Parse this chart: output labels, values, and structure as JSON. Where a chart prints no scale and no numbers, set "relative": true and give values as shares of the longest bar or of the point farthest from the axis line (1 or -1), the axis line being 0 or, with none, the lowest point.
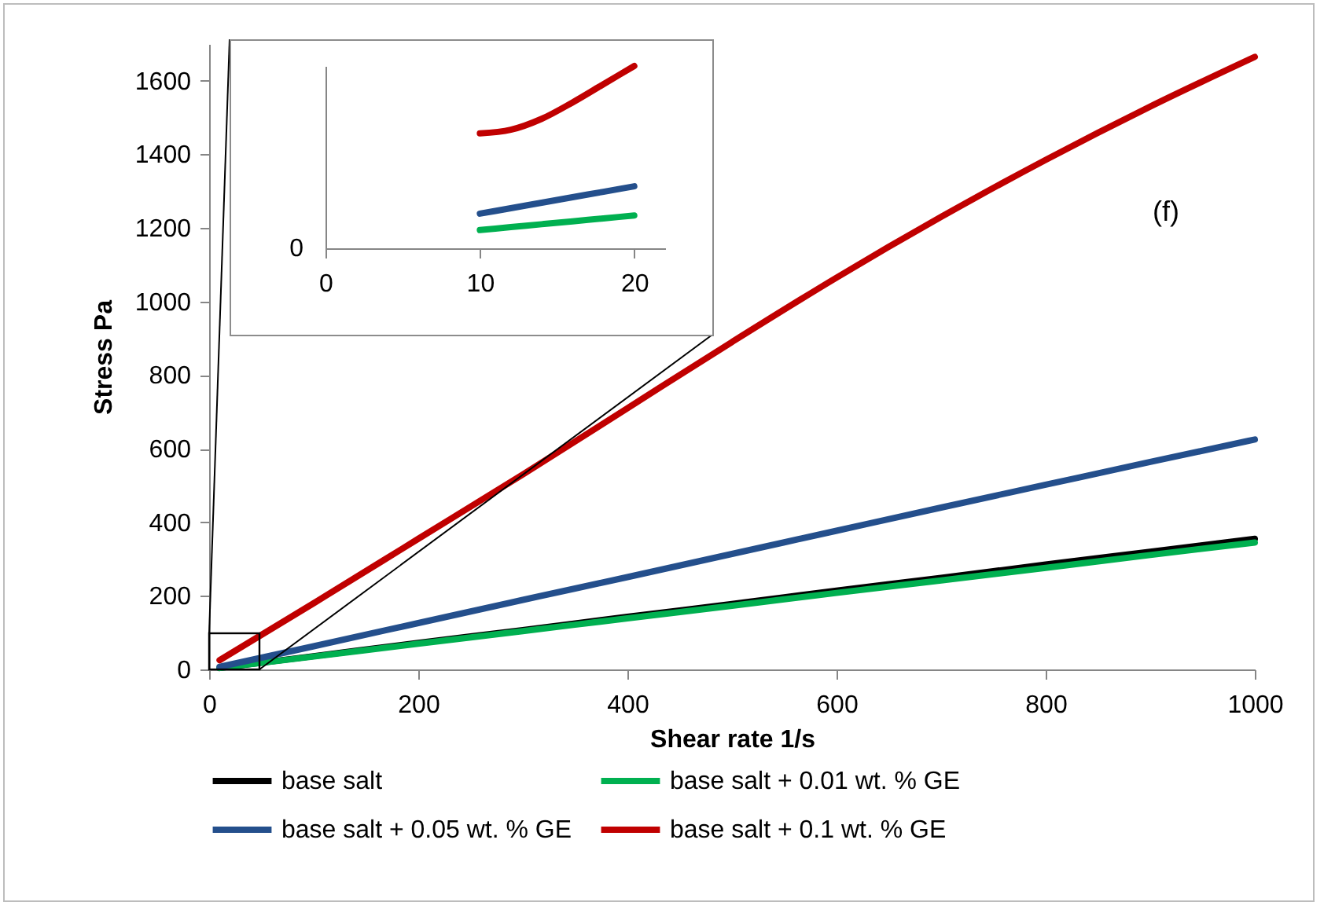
{
  "chart_data": [
    {
      "type": "line",
      "xlabel": "Shear rate 1/s",
      "ylabel": "Stress Pa",
      "annotations": [
        "(f)"
      ],
      "x": [
        10,
        100,
        200,
        300,
        400,
        500,
        600,
        700,
        800,
        900,
        1000
      ],
      "series": [
        {
          "name": "base salt",
          "color": "#000000",
          "values": [
            4,
            36,
            72,
            107,
            143,
            178,
            214,
            249,
            285,
            320,
            355
          ]
        },
        {
          "name": "base salt + 0.01 wt. % GE",
          "color": "#00b050",
          "values": [
            4,
            35,
            70,
            104,
            139,
            173,
            208,
            242,
            276,
            311,
            345
          ]
        },
        {
          "name": "base salt + 0.05 wt. % GE",
          "color": "#244f8c",
          "values": [
            7,
            63,
            126,
            189,
            251,
            314,
            377,
            440,
            502,
            564,
            625
          ]
        },
        {
          "name": "base salt + 0.1 wt. % GE",
          "color": "#c00000",
          "values": [
            25,
            180,
            355,
            530,
            710,
            890,
            1065,
            1230,
            1385,
            1530,
            1665
          ]
        }
      ],
      "xlim": [
        0,
        1000
      ],
      "xticks": [
        0,
        200,
        400,
        600,
        800,
        1000
      ],
      "ylim": [
        0,
        1700
      ],
      "yticks": [
        0,
        200,
        400,
        600,
        800,
        1000,
        1200,
        1400,
        1600
      ],
      "legend": "bottom",
      "grid": false,
      "marker": "none",
      "line_style": "solid"
    },
    {
      "type": "line",
      "relative": true,
      "x": [
        10,
        12,
        14,
        16,
        18,
        20
      ],
      "series": [
        {
          "color": "#00b050",
          "values": [
            0.1,
            0.116,
            0.132,
            0.148,
            0.164,
            0.18
          ]
        },
        {
          "color": "#244f8c",
          "values": [
            0.19,
            0.22,
            0.25,
            0.28,
            0.31,
            0.34
          ]
        },
        {
          "color": "#c00000",
          "values": [
            0.63,
            0.65,
            0.71,
            0.8,
            0.9,
            1.0
          ]
        }
      ],
      "xlim": [
        0,
        22
      ],
      "xticks": [
        0,
        10,
        20
      ],
      "annotations": [
        "0"
      ],
      "legend": false,
      "grid": false,
      "marker": "none",
      "line_style": "solid"
    }
  ]
}
